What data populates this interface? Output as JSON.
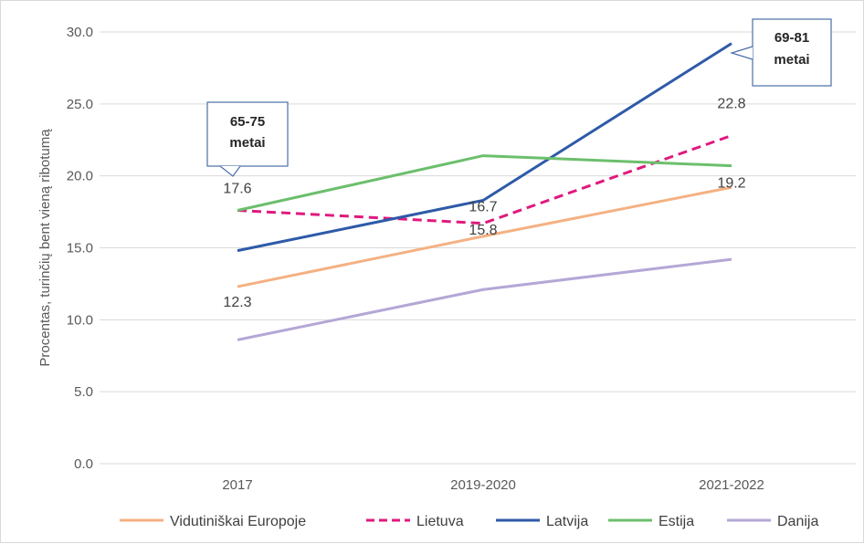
{
  "chart_data": {
    "type": "line",
    "ylabel": "Procentas, turinčių bent vieną ribotumą",
    "ylim": [
      0,
      30
    ],
    "ytick_labels": [
      "0.0",
      "5.0",
      "10.0",
      "15.0",
      "20.0",
      "25.0",
      "30.0"
    ],
    "categories": [
      "2017",
      "2019-2020",
      "2021-2022"
    ],
    "grid": "horizontal",
    "legend_position": "bottom",
    "series": [
      {
        "name": "Vidutiniškai Europoje",
        "values": [
          12.3,
          15.8,
          19.2
        ],
        "color": "#f4b183",
        "dashed": false
      },
      {
        "name": "Lietuva",
        "values": [
          17.6,
          16.7,
          22.8
        ],
        "color": "#e0197e",
        "dashed": true
      },
      {
        "name": "Latvija",
        "values": [
          14.8,
          18.3,
          29.2
        ],
        "color": "#2e5aa8",
        "dashed": false
      },
      {
        "name": "Estija",
        "values": [
          17.6,
          21.4,
          20.7
        ],
        "color": "#6cbf6c",
        "dashed": false
      },
      {
        "name": "Danija",
        "values": [
          8.6,
          12.1,
          14.2
        ],
        "color": "#b4a7d6",
        "dashed": false
      }
    ],
    "data_labels": [
      {
        "text": "17.6",
        "x": "2017",
        "y": 17.6
      },
      {
        "text": "12.3",
        "x": "2017",
        "y": 12.3
      },
      {
        "text": "16.7",
        "x": "2019-2020",
        "y": 16.7
      },
      {
        "text": "15.8",
        "x": "2019-2020",
        "y": 15.8
      },
      {
        "text": "22.8",
        "x": "2021-2022",
        "y": 22.8
      },
      {
        "text": "19.2",
        "x": "2021-2022",
        "y": 19.2
      }
    ],
    "annotations": [
      {
        "lines": [
          "65-75",
          "metai"
        ],
        "x": "2017"
      },
      {
        "lines": [
          "69-81",
          "metai"
        ],
        "x": "2021-2022"
      }
    ]
  }
}
